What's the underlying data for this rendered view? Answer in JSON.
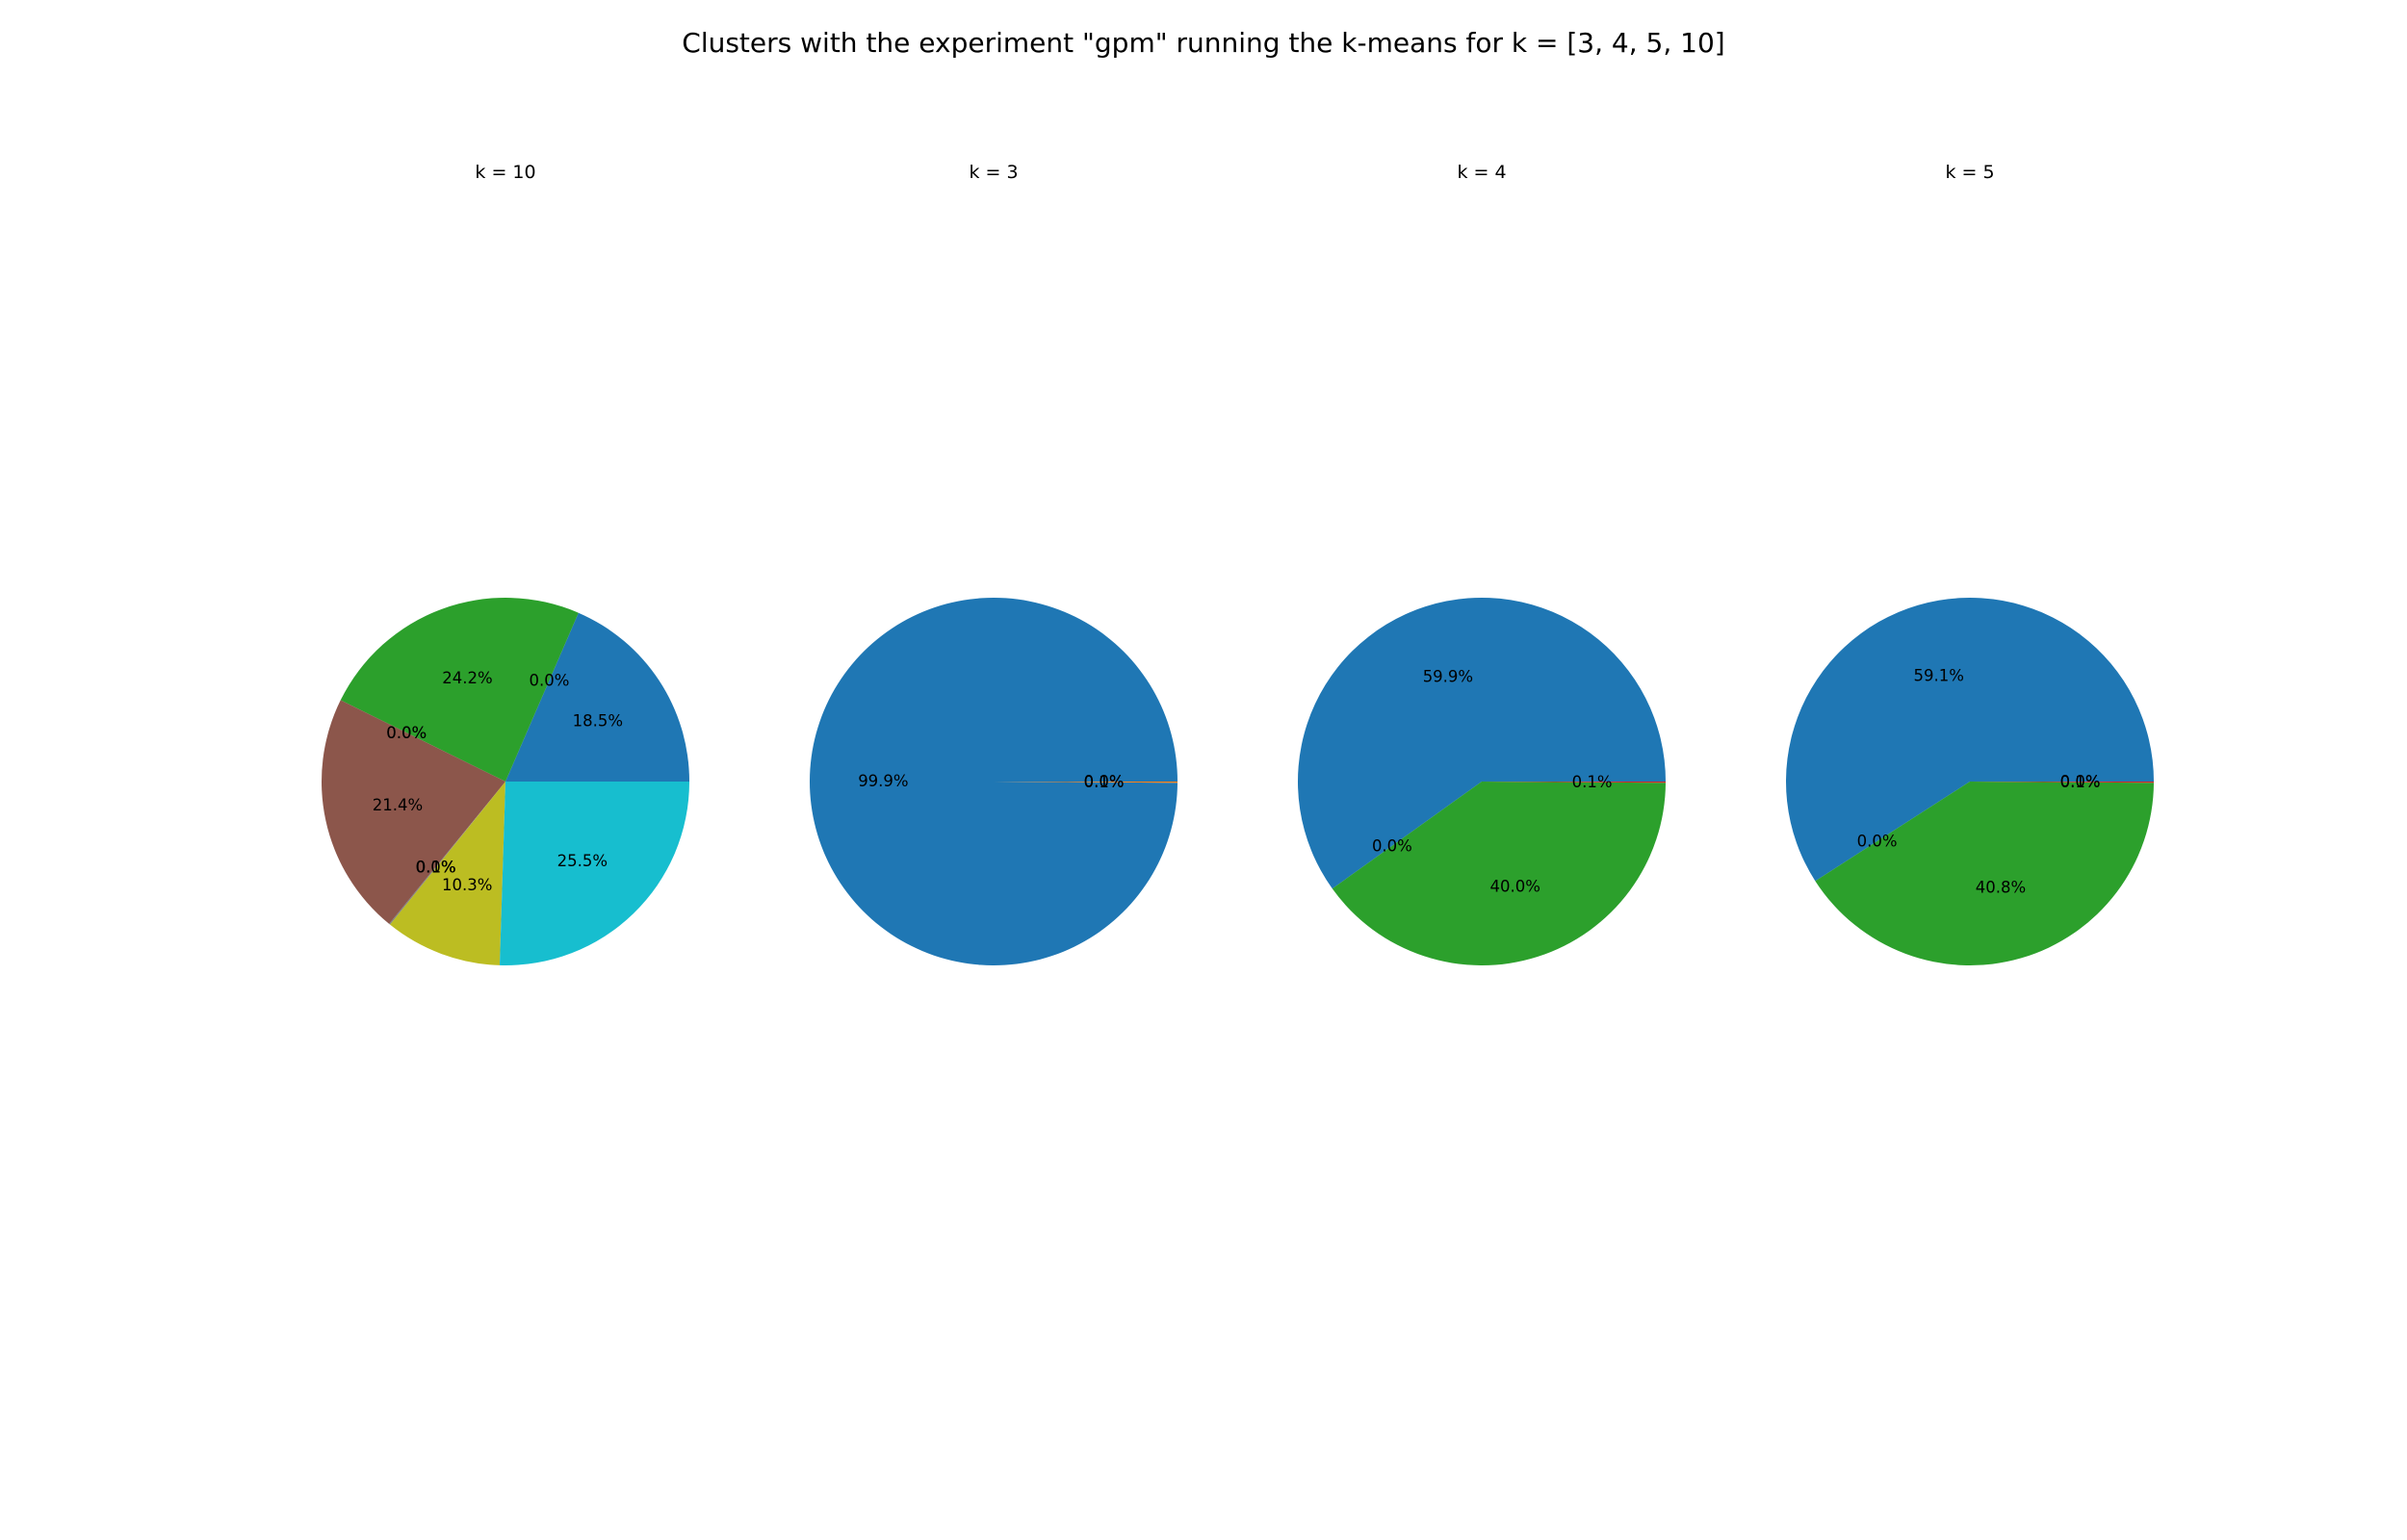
{
  "figure": {
    "title": "Clusters with the experiment \"gpm\" running the k-means for k = [3, 4, 5, 10]"
  },
  "chart_data": [
    {
      "type": "pie",
      "title": "k = 10",
      "start_angle_deg": 0,
      "direction": "counterclockwise",
      "slices": [
        {
          "value": 18.5,
          "label": "18.5%",
          "color": "#1f77b4"
        },
        {
          "value": 0.0,
          "label": "0.0%",
          "color": "#ff7f0e"
        },
        {
          "value": 24.2,
          "label": "24.2%",
          "color": "#2ca02c"
        },
        {
          "value": 0.0,
          "label": "0.0%",
          "color": "#d62728"
        },
        {
          "value": 0.0,
          "label": "0.0%",
          "color": "#9467bd"
        },
        {
          "value": 21.4,
          "label": "21.4%",
          "color": "#8c564b"
        },
        {
          "value": 0.0,
          "label": "0.0%",
          "color": "#e377c2"
        },
        {
          "value": 0.1,
          "label": "0.1%",
          "color": "#7f7f7f"
        },
        {
          "value": 10.3,
          "label": "10.3%",
          "color": "#bcbd22"
        },
        {
          "value": 25.5,
          "label": "25.5%",
          "color": "#17becf"
        }
      ]
    },
    {
      "type": "pie",
      "title": "k = 3",
      "start_angle_deg": 0,
      "direction": "counterclockwise",
      "slices": [
        {
          "value": 99.9,
          "label": "99.9%",
          "color": "#1f77b4"
        },
        {
          "value": 0.1,
          "label": "0.1%",
          "color": "#ff7f0e"
        },
        {
          "value": 0.0,
          "label": "0.0%",
          "color": "#2ca02c"
        }
      ]
    },
    {
      "type": "pie",
      "title": "k = 4",
      "start_angle_deg": 0,
      "direction": "counterclockwise",
      "slices": [
        {
          "value": 59.9,
          "label": "59.9%",
          "color": "#1f77b4"
        },
        {
          "value": 0.0,
          "label": "0.0%",
          "color": "#ff7f0e"
        },
        {
          "value": 40.0,
          "label": "40.0%",
          "color": "#2ca02c"
        },
        {
          "value": 0.1,
          "label": "0.1%",
          "color": "#d62728"
        }
      ]
    },
    {
      "type": "pie",
      "title": "k = 5",
      "start_angle_deg": 0,
      "direction": "counterclockwise",
      "slices": [
        {
          "value": 59.1,
          "label": "59.1%",
          "color": "#1f77b4"
        },
        {
          "value": 0.0,
          "label": "0.0%",
          "color": "#ff7f0e"
        },
        {
          "value": 40.8,
          "label": "40.8%",
          "color": "#2ca02c"
        },
        {
          "value": 0.1,
          "label": "0.1%",
          "color": "#d62728"
        },
        {
          "value": 0.0,
          "label": "0.0%",
          "color": "#9467bd"
        }
      ]
    }
  ]
}
